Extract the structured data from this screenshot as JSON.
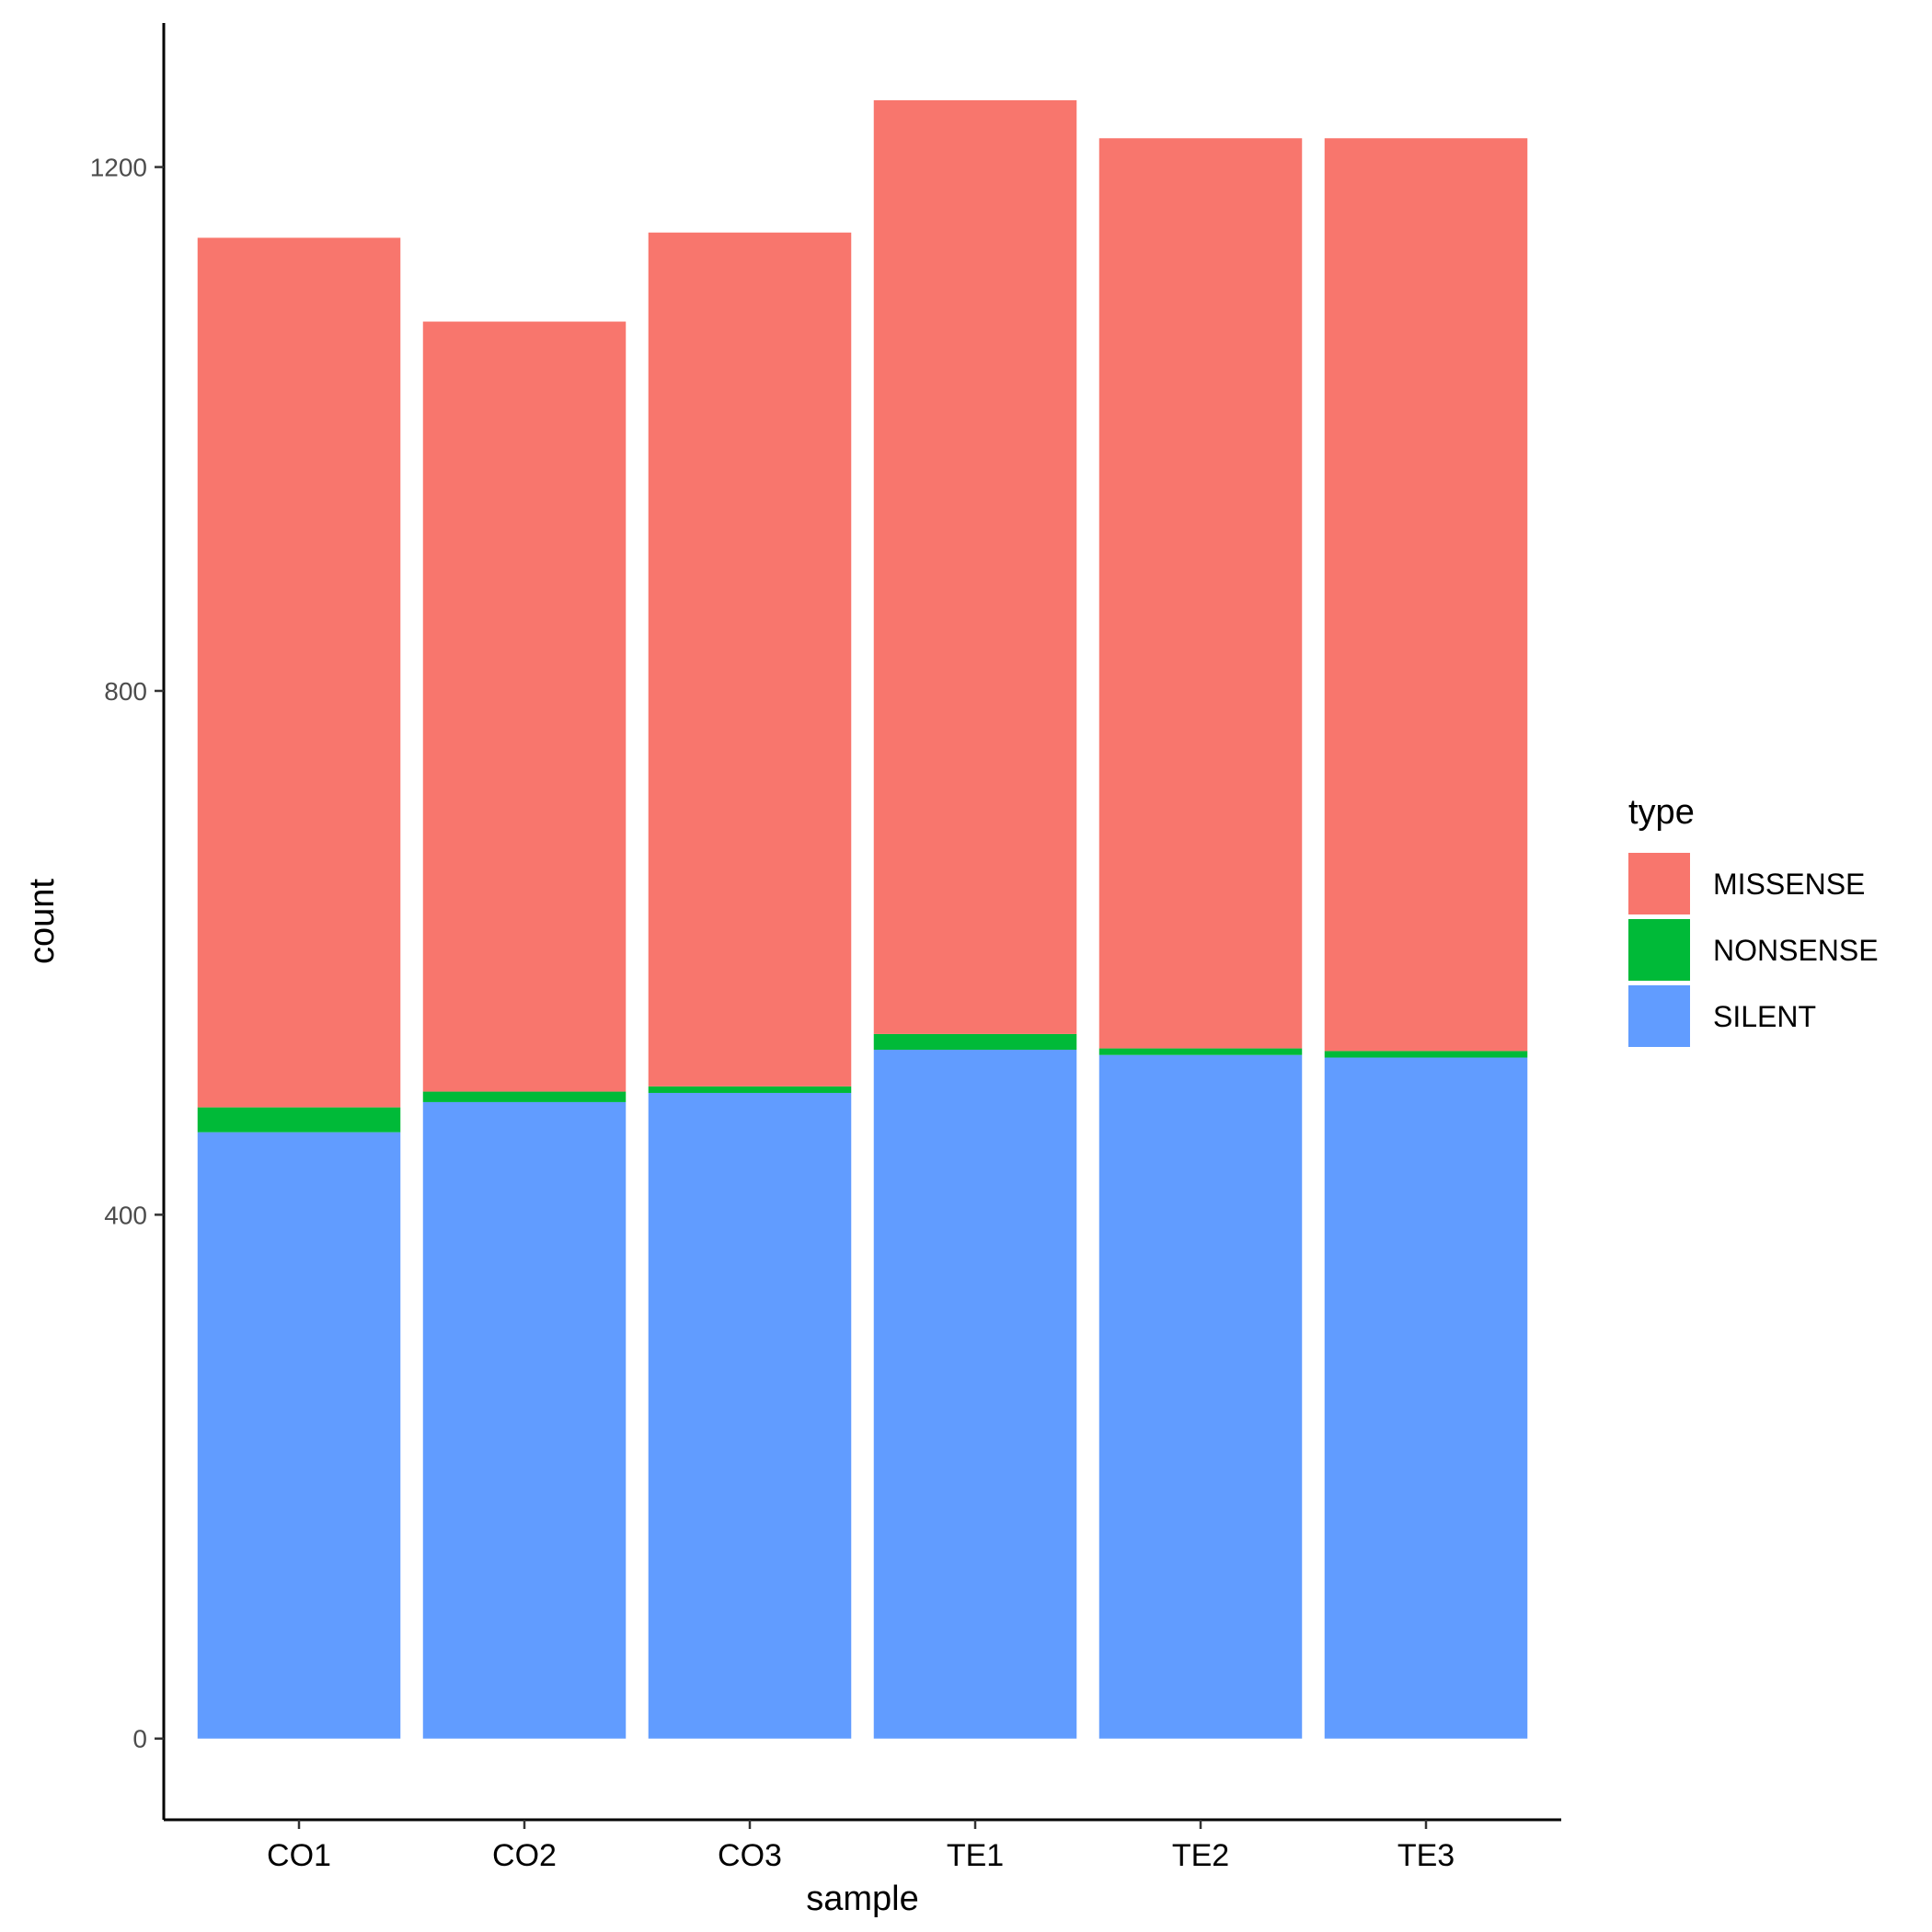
{
  "chart_data": {
    "type": "bar",
    "stacked": true,
    "title": "",
    "xlabel": "sample",
    "ylabel": "count",
    "categories": [
      "CO1",
      "CO2",
      "CO3",
      "TE1",
      "TE2",
      "TE3"
    ],
    "series": [
      {
        "name": "SILENT",
        "color": "#619CFF",
        "values": [
          463,
          486,
          493,
          526,
          522,
          520
        ]
      },
      {
        "name": "NONSENSE",
        "color": "#00BA38",
        "values": [
          19,
          8,
          5,
          12,
          5,
          5
        ]
      },
      {
        "name": "MISSENSE",
        "color": "#F8766D",
        "values": [
          664,
          588,
          652,
          713,
          695,
          697
        ]
      }
    ],
    "yticks": [
      0,
      400,
      800,
      1200
    ],
    "ylim": [
      -62,
      1310
    ],
    "legend": {
      "title": "type",
      "items": [
        "MISSENSE",
        "NONSENSE",
        "SILENT"
      ],
      "position": "right"
    },
    "grid": false
  }
}
